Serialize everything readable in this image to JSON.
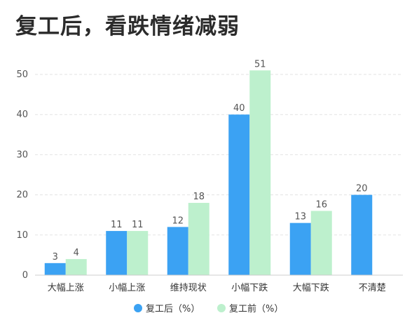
{
  "chart_data": {
    "type": "bar",
    "title": "复工后，看跌情绪减弱",
    "categories": [
      "大幅上涨",
      "小幅上涨",
      "维持现状",
      "小幅下跌",
      "大幅下跌",
      "不清楚"
    ],
    "series": [
      {
        "name": "复工后（%）",
        "color": "#3ba2f3",
        "values": [
          3,
          11,
          12,
          40,
          13,
          20
        ]
      },
      {
        "name": "复工前（%）",
        "color": "#bdf0cd",
        "values": [
          4,
          11,
          18,
          51,
          16,
          null
        ]
      }
    ],
    "ylim": [
      0,
      50
    ],
    "yticks": [
      0,
      10,
      20,
      30,
      40,
      50
    ],
    "grid": true,
    "legend": "bottom-center"
  }
}
